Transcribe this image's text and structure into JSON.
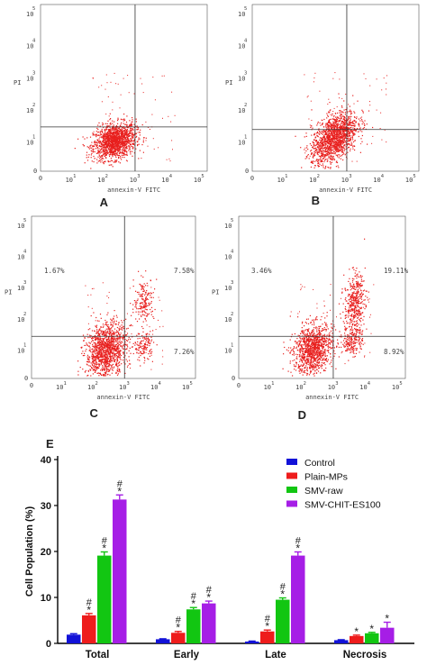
{
  "chart_data": [
    {
      "type": "scatter",
      "panel_label": "A",
      "xlabel": "annexin-V FITC",
      "ylabel": "PI",
      "x_tick_labels": [
        "0",
        "1",
        "2",
        "3",
        "4",
        "5"
      ],
      "y_tick_labels": [
        "0",
        "1",
        "2",
        "3",
        "4",
        "5"
      ],
      "quadrant_labels": {
        "upper_left": "",
        "upper_right": "",
        "lower_right": ""
      },
      "clusters": [
        {
          "cx": 2.3,
          "cy": 0.95,
          "sx": 0.33,
          "sy": 0.28,
          "n": 1500,
          "r": 0.25
        }
      ]
    },
    {
      "type": "scatter",
      "panel_label": "B",
      "xlabel": "annexin-V FITC",
      "ylabel": "PI",
      "x_tick_labels": [
        "0",
        "1",
        "2",
        "3",
        "4",
        "5"
      ],
      "y_tick_labels": [
        "0",
        "1",
        "2",
        "3",
        "4",
        "5"
      ],
      "quadrant_labels": {
        "upper_left": "",
        "upper_right": "",
        "lower_right": ""
      },
      "clusters": [
        {
          "cx": 2.55,
          "cy": 1.05,
          "sx": 0.36,
          "sy": 0.42,
          "n": 1500,
          "r": 0.5
        }
      ]
    },
    {
      "type": "scatter",
      "panel_label": "C",
      "xlabel": "annexin-V FITC",
      "ylabel": "PI",
      "x_tick_labels": [
        "0",
        "1",
        "2",
        "3",
        "4",
        "5"
      ],
      "y_tick_labels": [
        "0",
        "1",
        "2",
        "3",
        "4",
        "5"
      ],
      "quadrant_labels": {
        "upper_left": "1.67%",
        "upper_right": "7.58%",
        "lower_right": "7.26%"
      },
      "clusters": [
        {
          "cx": 2.35,
          "cy": 0.9,
          "sx": 0.32,
          "sy": 0.45,
          "n": 1300,
          "r": 0.2
        },
        {
          "cx": 3.55,
          "cy": 2.5,
          "sx": 0.16,
          "sy": 0.35,
          "n": 180,
          "r": 0.1
        },
        {
          "cx": 3.55,
          "cy": 1.05,
          "sx": 0.15,
          "sy": 0.22,
          "n": 140,
          "r": 0.1
        }
      ]
    },
    {
      "type": "scatter",
      "panel_label": "D",
      "xlabel": "annexin-V FITC",
      "ylabel": "PI",
      "x_tick_labels": [
        "0",
        "1",
        "2",
        "3",
        "4",
        "5"
      ],
      "y_tick_labels": [
        "0",
        "1",
        "2",
        "3",
        "4",
        "5"
      ],
      "quadrant_labels": {
        "upper_left": "3.46%",
        "upper_right": "19.11%",
        "lower_right": "8.92%"
      },
      "clusters": [
        {
          "cx": 2.3,
          "cy": 0.95,
          "sx": 0.3,
          "sy": 0.4,
          "n": 1100,
          "r": 0.2
        },
        {
          "cx": 3.6,
          "cy": 2.45,
          "sx": 0.16,
          "sy": 0.45,
          "n": 420,
          "r": 0.15
        },
        {
          "cx": 3.55,
          "cy": 1.25,
          "sx": 0.16,
          "sy": 0.25,
          "n": 200,
          "r": 0.1
        }
      ]
    },
    {
      "type": "bar",
      "panel_label": "E",
      "categories": [
        "Total",
        "Early",
        "Late",
        "Necrosis"
      ],
      "ylabel": "Cell Population (%)",
      "xlabel": "",
      "ylim": [
        0,
        40
      ],
      "y_ticks": [
        "0",
        "10",
        "20",
        "30",
        "40"
      ],
      "legend_position": "top-right",
      "series": [
        {
          "name": "Control",
          "color": "#1212d8",
          "values": [
            1.9,
            0.9,
            0.4,
            0.7
          ],
          "errors": [
            0.2,
            0.1,
            0.1,
            0.1
          ],
          "marks": [
            "",
            "",
            "",
            ""
          ]
        },
        {
          "name": "Plain-MPs",
          "color": "#ee1c1c",
          "values": [
            6.1,
            2.3,
            2.6,
            1.6
          ],
          "errors": [
            0.4,
            0.3,
            0.3,
            0.2
          ],
          "marks": [
            "#*",
            "#*",
            "#*",
            "*"
          ]
        },
        {
          "name": "SMV-raw",
          "color": "#12c612",
          "values": [
            19.1,
            7.4,
            9.5,
            2.2
          ],
          "errors": [
            0.8,
            0.4,
            0.4,
            0.2
          ],
          "marks": [
            "#*",
            "#*",
            "#*",
            "*"
          ]
        },
        {
          "name": "SMV-CHIT-ES100",
          "color": "#a61ee6",
          "values": [
            31.3,
            8.7,
            19.1,
            3.4
          ],
          "errors": [
            1.0,
            0.5,
            0.8,
            1.2
          ],
          "marks": [
            "#*",
            "#*",
            "#*",
            "*"
          ]
        }
      ]
    }
  ]
}
